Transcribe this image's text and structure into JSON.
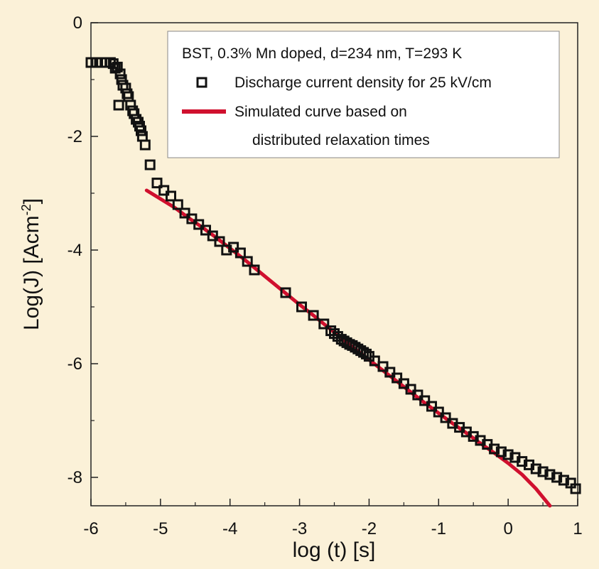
{
  "chart_data": {
    "type": "scatter",
    "title": "",
    "xlabel": "log (t) [s]",
    "ylabel_main": "Log(J) [Acm",
    "ylabel_sup": "-2",
    "ylabel_close": "]",
    "xlim": [
      -6,
      1
    ],
    "ylim": [
      -8.5,
      0
    ],
    "x_ticks": [
      -6,
      -5,
      -4,
      -3,
      -2,
      -1,
      0,
      1
    ],
    "x_tick_labels": [
      "-6",
      "-5",
      "-4",
      "-3",
      "-2",
      "-1",
      "0",
      "1"
    ],
    "y_ticks": [
      0,
      -2,
      -4,
      -6,
      -8
    ],
    "y_tick_labels": [
      "0",
      "-2",
      "-4",
      "-6",
      "-8"
    ],
    "grid": false,
    "legend": {
      "placement": "top-right",
      "header": "BST, 0.3% Mn doped, d=234 nm, T=293 K",
      "entries": [
        "Discharge current density for 25 kV/cm",
        "Simulated curve based on",
        "distributed relaxation times"
      ]
    },
    "series": [
      {
        "name": "Discharge current density for 25 kV/cm",
        "kind": "scatter",
        "marker": "open-square",
        "color": "#111111",
        "x": [
          -6.0,
          -5.92,
          -5.85,
          -5.78,
          -5.72,
          -5.68,
          -5.65,
          -5.62,
          -5.6,
          -5.58,
          -5.56,
          -5.54,
          -5.5,
          -5.48,
          -5.46,
          -5.43,
          -5.4,
          -5.38,
          -5.35,
          -5.32,
          -5.3,
          -5.28,
          -5.26,
          -5.22,
          -5.15,
          -5.05,
          -4.95,
          -4.85,
          -4.75,
          -4.65,
          -4.55,
          -4.45,
          -4.35,
          -4.25,
          -4.15,
          -4.05,
          -3.95,
          -3.85,
          -3.75,
          -3.65,
          -3.2,
          -2.97,
          -2.8,
          -2.65,
          -2.55,
          -2.5,
          -2.45,
          -2.4,
          -2.36,
          -2.32,
          -2.28,
          -2.24,
          -2.2,
          -2.16,
          -2.12,
          -2.08,
          -2.04,
          -2.0,
          -1.92,
          -1.8,
          -1.7,
          -1.6,
          -1.5,
          -1.4,
          -1.3,
          -1.2,
          -1.1,
          -1.0,
          -0.9,
          -0.8,
          -0.7,
          -0.6,
          -0.5,
          -0.4,
          -0.3,
          -0.2,
          -0.1,
          0.0,
          0.1,
          0.2,
          0.3,
          0.4,
          0.5,
          0.6,
          0.7,
          0.8,
          0.9,
          0.97
        ],
        "y": [
          -0.7,
          -0.7,
          -0.7,
          -0.7,
          -0.7,
          -0.72,
          -0.8,
          -0.78,
          -1.45,
          -0.9,
          -1.0,
          -1.1,
          -1.15,
          -1.25,
          -1.3,
          -1.45,
          -1.55,
          -1.6,
          -1.7,
          -1.75,
          -1.82,
          -1.9,
          -2.0,
          -2.15,
          -2.5,
          -2.82,
          -2.95,
          -3.05,
          -3.2,
          -3.35,
          -3.45,
          -3.55,
          -3.65,
          -3.75,
          -3.85,
          -4.0,
          -3.95,
          -4.05,
          -4.2,
          -4.35,
          -4.75,
          -5.0,
          -5.15,
          -5.3,
          -5.42,
          -5.47,
          -5.52,
          -5.57,
          -5.6,
          -5.63,
          -5.66,
          -5.68,
          -5.71,
          -5.74,
          -5.77,
          -5.8,
          -5.83,
          -5.87,
          -5.95,
          -6.05,
          -6.15,
          -6.25,
          -6.35,
          -6.45,
          -6.55,
          -6.65,
          -6.75,
          -6.85,
          -6.95,
          -7.05,
          -7.12,
          -7.2,
          -7.28,
          -7.35,
          -7.42,
          -7.5,
          -7.55,
          -7.6,
          -7.65,
          -7.72,
          -7.78,
          -7.85,
          -7.9,
          -7.95,
          -8.0,
          -8.05,
          -8.1,
          -8.2
        ]
      },
      {
        "name": "Simulated curve based on distributed relaxation times",
        "kind": "line",
        "color": "#d0102e",
        "x": [
          -5.2,
          -5.0,
          -4.8,
          -4.6,
          -4.4,
          -4.2,
          -4.0,
          -3.8,
          -3.6,
          -3.4,
          -3.2,
          -3.0,
          -2.8,
          -2.6,
          -2.4,
          -2.2,
          -2.0,
          -1.8,
          -1.6,
          -1.4,
          -1.2,
          -1.0,
          -0.8,
          -0.6,
          -0.4,
          -0.2,
          0.0,
          0.2,
          0.4,
          0.6
        ],
        "y": [
          -2.95,
          -3.1,
          -3.25,
          -3.43,
          -3.6,
          -3.78,
          -3.97,
          -4.16,
          -4.36,
          -4.56,
          -4.76,
          -4.96,
          -5.15,
          -5.35,
          -5.55,
          -5.74,
          -5.93,
          -6.12,
          -6.31,
          -6.5,
          -6.69,
          -6.87,
          -7.05,
          -7.22,
          -7.4,
          -7.57,
          -7.75,
          -7.95,
          -8.2,
          -8.5
        ]
      }
    ]
  }
}
